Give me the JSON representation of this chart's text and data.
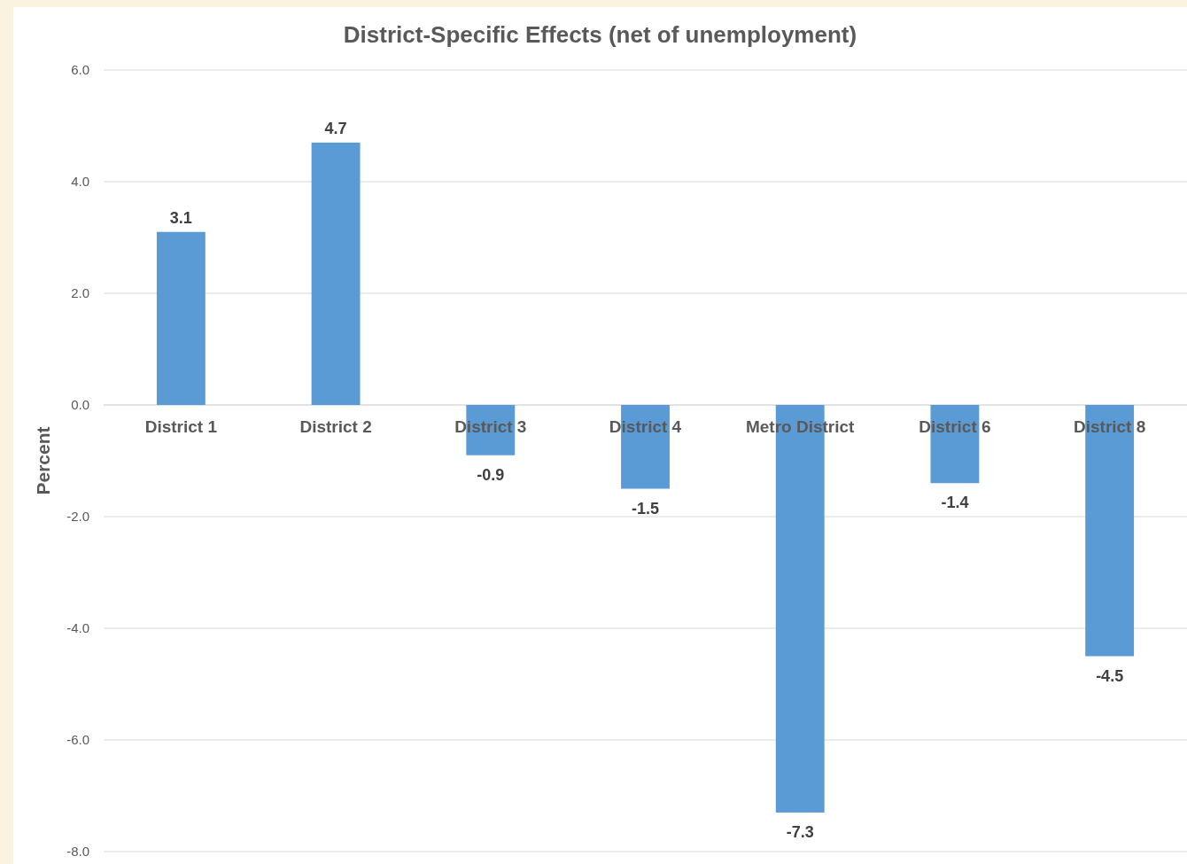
{
  "chart_data": {
    "type": "bar",
    "title": "District-Specific Effects (net of unemployment)",
    "ylabel": "Percent",
    "categories": [
      "District 1",
      "District 2",
      "District 3",
      "District 4",
      "Metro District",
      "District 6",
      "District 8"
    ],
    "values": [
      3.1,
      4.7,
      -0.9,
      -1.5,
      -7.3,
      -1.4,
      -4.5
    ],
    "color": "#5b9bd5",
    "ylim": [
      -8,
      6
    ],
    "yticks": [
      {
        "value": -8,
        "label": "-8.0"
      },
      {
        "value": -6,
        "label": "-6.0"
      },
      {
        "value": -4,
        "label": "-4.0"
      },
      {
        "value": -2,
        "label": "-2.0"
      },
      {
        "value": 0,
        "label": "0.0"
      },
      {
        "value": 2,
        "label": "2.0"
      },
      {
        "value": 4,
        "label": "4.0"
      },
      {
        "value": 6,
        "label": "6.0"
      }
    ],
    "grid": "y",
    "data_labels": true
  }
}
